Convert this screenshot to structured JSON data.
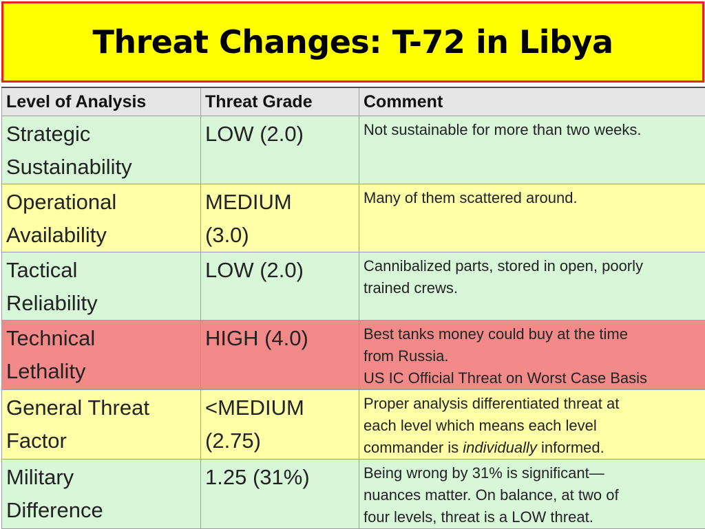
{
  "title": "Threat Changes: T-72 in Libya",
  "headers": {
    "level": "Level of Analysis",
    "grade": "Threat Grade",
    "comment": "Comment"
  },
  "rows": [
    {
      "level": [
        "Strategic",
        "Sustainability"
      ],
      "grade": [
        "LOW (2.0)"
      ],
      "comment": [
        "Not sustainable for more than two weeks."
      ],
      "color": "#d8f7d8"
    },
    {
      "level": [
        "Operational",
        "Availability"
      ],
      "grade": [
        "MEDIUM",
        "(3.0)"
      ],
      "comment": [
        "Many of them scattered around."
      ],
      "color": "#ffffa8"
    },
    {
      "level": [
        "Tactical",
        "Reliability"
      ],
      "grade": [
        "LOW (2.0)"
      ],
      "comment": [
        "Cannibalized parts, stored in open, poorly",
        "trained crews."
      ],
      "color": "#d8f7d8"
    },
    {
      "level": [
        "Technical",
        "Lethality"
      ],
      "grade": [
        "HIGH (4.0)"
      ],
      "comment": [
        "Best tanks money could buy at the time",
        "from Russia.",
        "US IC Official Threat on Worst Case Basis"
      ],
      "color": "#f28a8a"
    },
    {
      "level": [
        "General Threat",
        "Factor"
      ],
      "grade": [
        "<MEDIUM",
        "(2.75)"
      ],
      "comment_parts": {
        "line1": "Proper analysis differentiated threat at",
        "line2": "each level which means each level",
        "line3_pre": "commander is ",
        "line3_em": "individually",
        "line3_post": " informed."
      },
      "color": "#ffffa8"
    },
    {
      "level": [
        "Military",
        "Difference"
      ],
      "grade": [
        "1.25 (31%)"
      ],
      "comment": [
        "Being wrong by 31% is significant—",
        "nuances matter.  On balance, at two of",
        "four levels, threat is a LOW threat."
      ],
      "color": "#d8f7d8"
    }
  ],
  "colors": {
    "title_bg": "#ffff00",
    "title_border": "#e8211b",
    "header_bg": "#e6e6e6",
    "green": "#d8f7d8",
    "yellow": "#ffffa8",
    "red": "#f28a8a"
  }
}
